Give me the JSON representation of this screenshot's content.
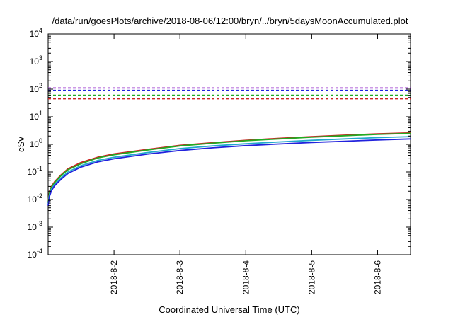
{
  "chart_data": {
    "type": "line",
    "title": "/data/run/goesPlots/archive/2018-08-06/12:00/bryn/../bryn/5daysMoonAccumulated.plot",
    "xlabel": "Coordinated Universal Time (UTC)",
    "ylabel": "cSv",
    "y_scale": "log",
    "ylim": [
      0.0001,
      10000
    ],
    "xlim": [
      0,
      5.5
    ],
    "x_ticks": [
      {
        "x": 1,
        "label": "2018-8-2"
      },
      {
        "x": 2,
        "label": "2018-8-3"
      },
      {
        "x": 3,
        "label": "2018-8-4"
      },
      {
        "x": 4,
        "label": "2018-8-5"
      },
      {
        "x": 5,
        "label": "2018-8-6"
      }
    ],
    "y_ticks": [
      {
        "v": 0.0001,
        "base": "10",
        "exp": "-4"
      },
      {
        "v": 0.001,
        "base": "10",
        "exp": "-3"
      },
      {
        "v": 0.01,
        "base": "10",
        "exp": "-2"
      },
      {
        "v": 0.1,
        "base": "10",
        "exp": "-1"
      },
      {
        "v": 1,
        "base": "10",
        "exp": "0"
      },
      {
        "v": 10,
        "base": "10",
        "exp": "1"
      },
      {
        "v": 100,
        "base": "10",
        "exp": "2"
      },
      {
        "v": 1000,
        "base": "10",
        "exp": "3"
      },
      {
        "v": 10000,
        "base": "10",
        "exp": "4"
      }
    ],
    "grid": false,
    "legend": "none",
    "series": [
      {
        "color": "#cc2222",
        "style": "solid",
        "x": [
          0,
          0.02,
          0.05,
          0.1,
          0.2,
          0.3,
          0.5,
          0.75,
          1.0,
          1.5,
          2.0,
          2.5,
          3.0,
          3.5,
          4.0,
          4.5,
          5.0,
          5.5
        ],
        "y": [
          0.008,
          0.02,
          0.03,
          0.045,
          0.08,
          0.13,
          0.22,
          0.34,
          0.45,
          0.65,
          0.92,
          1.15,
          1.4,
          1.65,
          1.9,
          2.15,
          2.4,
          2.6
        ]
      },
      {
        "color": "#22aa22",
        "style": "solid",
        "x": [
          0,
          0.02,
          0.05,
          0.1,
          0.2,
          0.3,
          0.5,
          0.75,
          1.0,
          1.5,
          2.0,
          2.5,
          3.0,
          3.5,
          4.0,
          4.5,
          5.0,
          5.5
        ],
        "y": [
          0.0075,
          0.018,
          0.028,
          0.042,
          0.075,
          0.12,
          0.2,
          0.32,
          0.42,
          0.62,
          0.88,
          1.1,
          1.35,
          1.58,
          1.82,
          2.05,
          2.3,
          2.5
        ]
      },
      {
        "color": "#22aacc",
        "style": "solid",
        "x": [
          0,
          0.02,
          0.05,
          0.1,
          0.2,
          0.3,
          0.5,
          0.75,
          1.0,
          1.5,
          2.0,
          2.5,
          3.0,
          3.5,
          4.0,
          4.5,
          5.0,
          5.5
        ],
        "y": [
          0.0065,
          0.015,
          0.024,
          0.036,
          0.062,
          0.1,
          0.17,
          0.26,
          0.34,
          0.5,
          0.7,
          0.88,
          1.05,
          1.22,
          1.4,
          1.58,
          1.75,
          1.9
        ]
      },
      {
        "color": "#2222dd",
        "style": "solid",
        "x": [
          0,
          0.02,
          0.05,
          0.1,
          0.2,
          0.3,
          0.5,
          0.75,
          1.0,
          1.5,
          2.0,
          2.5,
          3.0,
          3.5,
          4.0,
          4.5,
          5.0,
          5.5
        ],
        "y": [
          0.006,
          0.013,
          0.021,
          0.032,
          0.055,
          0.088,
          0.15,
          0.23,
          0.3,
          0.44,
          0.6,
          0.75,
          0.9,
          1.03,
          1.17,
          1.3,
          1.44,
          1.58
        ]
      },
      {
        "color": "#9933cc",
        "style": "dashed",
        "x": [
          0,
          5.5
        ],
        "y": [
          110,
          110
        ]
      },
      {
        "color": "#2222dd",
        "style": "dashed",
        "x": [
          0,
          5.5
        ],
        "y": [
          90,
          90
        ]
      },
      {
        "color": "#22aa22",
        "style": "dashed",
        "x": [
          0,
          5.5
        ],
        "y": [
          60,
          60
        ]
      },
      {
        "color": "#cc2222",
        "style": "dashed",
        "x": [
          0,
          5.5
        ],
        "y": [
          45,
          45
        ]
      }
    ]
  }
}
